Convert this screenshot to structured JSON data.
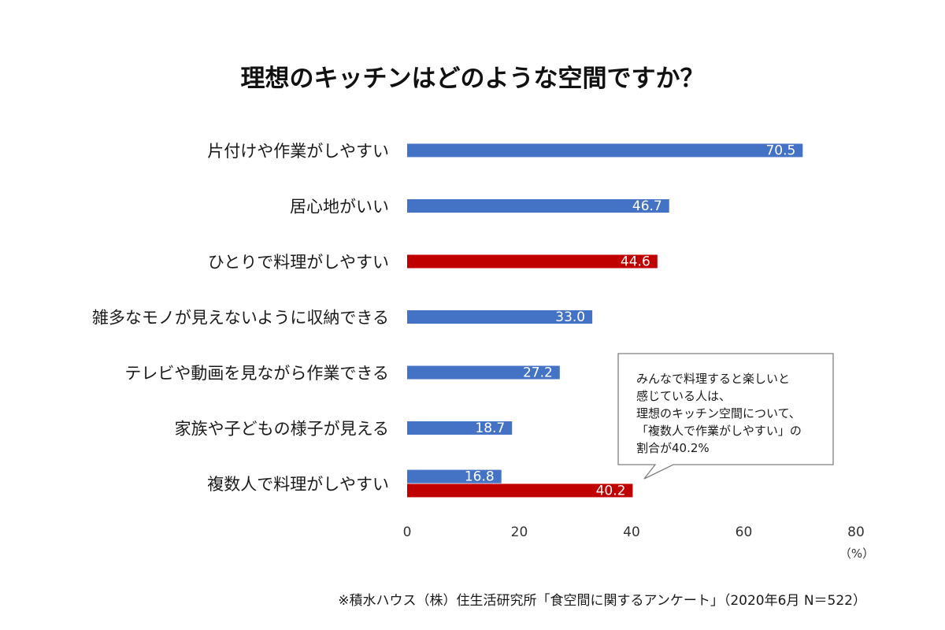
{
  "chart_data": {
    "type": "bar",
    "orientation": "horizontal",
    "title": "理想のキッチンはどのような空間ですか？",
    "unit": "（%）",
    "xlim": [
      0,
      80
    ],
    "ticks": [
      "0",
      "20",
      "40",
      "60",
      "80"
    ],
    "grid": false,
    "colors": {
      "blue": "#4472C4",
      "red": "#C00000"
    },
    "categories": [
      {
        "label": "片付けや作業がしやすい",
        "bars": [
          {
            "value": 70.5,
            "label": "70.5",
            "color": "blue"
          }
        ]
      },
      {
        "label": "居心地がいい",
        "bars": [
          {
            "value": 46.7,
            "label": "46.7",
            "color": "blue"
          }
        ]
      },
      {
        "label": "ひとりで料理がしやすい",
        "bars": [
          {
            "value": 44.6,
            "label": "44.6",
            "color": "red"
          }
        ]
      },
      {
        "label": "雑多なモノが見えないように収納できる",
        "bars": [
          {
            "value": 33.0,
            "label": "33.0",
            "color": "blue"
          }
        ]
      },
      {
        "label": "テレビや動画を見ながら作業できる",
        "bars": [
          {
            "value": 27.2,
            "label": "27.2",
            "color": "blue"
          }
        ]
      },
      {
        "label": "家族や子どもの様子が見える",
        "bars": [
          {
            "value": 18.7,
            "label": "18.7",
            "color": "blue"
          }
        ]
      },
      {
        "label": "複数人で料理がしやすい",
        "bars": [
          {
            "value": 16.8,
            "label": "16.8",
            "color": "blue"
          },
          {
            "value": 40.2,
            "label": "40.2",
            "color": "red"
          }
        ]
      }
    ],
    "annotation": {
      "lines": [
        "みんなで料理すると楽しいと",
        "感じている人は、",
        "理想のキッチン空間について、",
        "「複数人で作業がしやすい」の",
        "割合が40.2%"
      ]
    },
    "source": "※積水ハウス（株）住生活研究所「食空間に関するアンケート」（2020年6月 N＝522）"
  }
}
